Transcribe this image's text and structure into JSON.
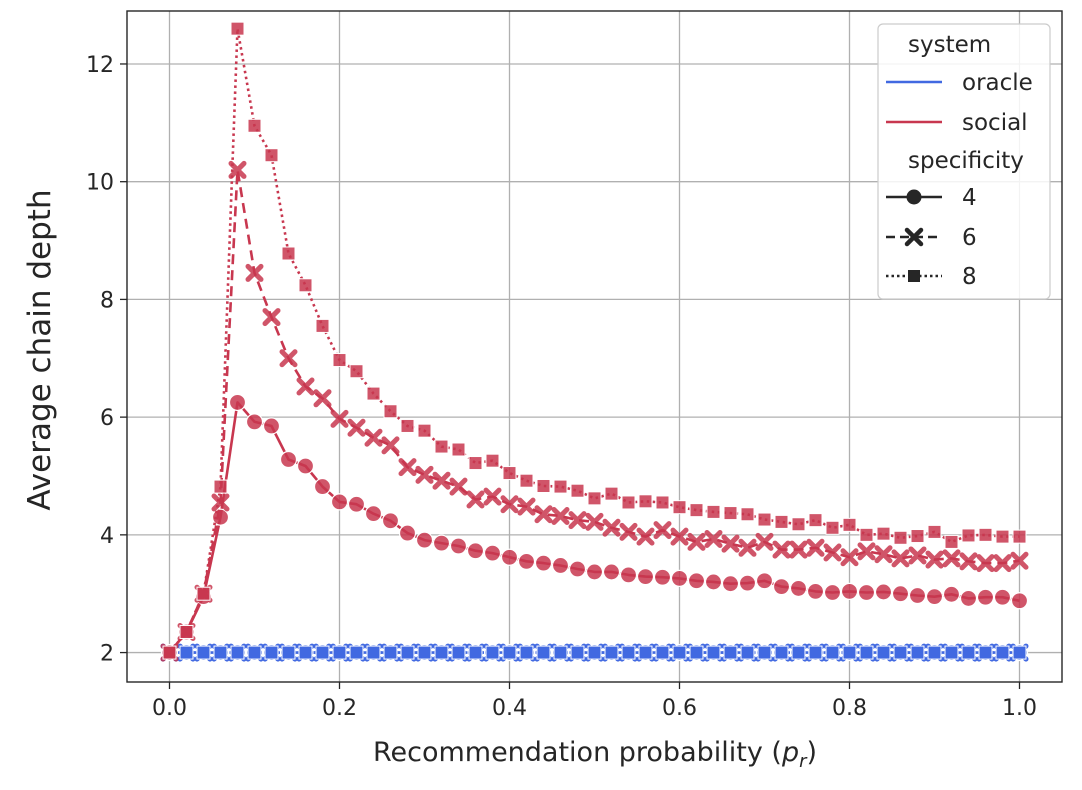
{
  "chart_data": {
    "type": "line",
    "xlabel": "Recommendation probability (",
    "xlabel_math": "p",
    "xlabel_sub": "r",
    "xlabel_close": ")",
    "ylabel": "Average chain depth",
    "xlim": [
      -0.05,
      1.05
    ],
    "ylim": [
      1.5,
      12.9
    ],
    "grid": true,
    "x_ticks": [
      0.0,
      0.2,
      0.4,
      0.6,
      0.8,
      1.0
    ],
    "x_tick_labels": [
      "0.0",
      "0.2",
      "0.4",
      "0.6",
      "0.8",
      "1.0"
    ],
    "y_ticks": [
      2,
      4,
      6,
      8,
      10,
      12
    ],
    "y_tick_labels": [
      "2",
      "4",
      "6",
      "8",
      "10",
      "12"
    ],
    "x": [
      0.0,
      0.02,
      0.04,
      0.06,
      0.08,
      0.1,
      0.12,
      0.14,
      0.16,
      0.18,
      0.2,
      0.22,
      0.24,
      0.26,
      0.28,
      0.3,
      0.32,
      0.34,
      0.36,
      0.38,
      0.4,
      0.42,
      0.44,
      0.46,
      0.48,
      0.5,
      0.52,
      0.54,
      0.56,
      0.58,
      0.6,
      0.62,
      0.64,
      0.66,
      0.68,
      0.7,
      0.72,
      0.74,
      0.76,
      0.78,
      0.8,
      0.82,
      0.84,
      0.86,
      0.88,
      0.9,
      0.92,
      0.94,
      0.96,
      0.98,
      1.0
    ],
    "series": [
      {
        "name": "oracle, specificity 4",
        "system": "oracle",
        "specificity": "4",
        "color": "#4169e1",
        "values": [
          2,
          2,
          2,
          2,
          2,
          2,
          2,
          2,
          2,
          2,
          2,
          2,
          2,
          2,
          2,
          2,
          2,
          2,
          2,
          2,
          2,
          2,
          2,
          2,
          2,
          2,
          2,
          2,
          2,
          2,
          2,
          2,
          2,
          2,
          2,
          2,
          2,
          2,
          2,
          2,
          2,
          2,
          2,
          2,
          2,
          2,
          2,
          2,
          2,
          2,
          2
        ]
      },
      {
        "name": "oracle, specificity 6",
        "system": "oracle",
        "specificity": "6",
        "color": "#4169e1",
        "values": [
          2,
          2,
          2,
          2,
          2,
          2,
          2,
          2,
          2,
          2,
          2,
          2,
          2,
          2,
          2,
          2,
          2,
          2,
          2,
          2,
          2,
          2,
          2,
          2,
          2,
          2,
          2,
          2,
          2,
          2,
          2,
          2,
          2,
          2,
          2,
          2,
          2,
          2,
          2,
          2,
          2,
          2,
          2,
          2,
          2,
          2,
          2,
          2,
          2,
          2,
          2
        ]
      },
      {
        "name": "oracle, specificity 8",
        "system": "oracle",
        "specificity": "8",
        "color": "#4169e1",
        "values": [
          2,
          2,
          2,
          2,
          2,
          2,
          2,
          2,
          2,
          2,
          2,
          2,
          2,
          2,
          2,
          2,
          2,
          2,
          2,
          2,
          2,
          2,
          2,
          2,
          2,
          2,
          2,
          2,
          2,
          2,
          2,
          2,
          2,
          2,
          2,
          2,
          2,
          2,
          2,
          2,
          2,
          2,
          2,
          2,
          2,
          2,
          2,
          2,
          2,
          2,
          2
        ]
      },
      {
        "name": "social, specificity 4",
        "system": "social",
        "specificity": "4",
        "color": "#c8374f",
        "values": [
          2.0,
          2.35,
          2.95,
          4.3,
          6.25,
          5.92,
          5.85,
          5.28,
          5.17,
          4.82,
          4.56,
          4.52,
          4.36,
          4.24,
          4.03,
          3.91,
          3.86,
          3.81,
          3.73,
          3.69,
          3.62,
          3.55,
          3.52,
          3.48,
          3.42,
          3.37,
          3.37,
          3.32,
          3.29,
          3.28,
          3.26,
          3.22,
          3.2,
          3.17,
          3.18,
          3.22,
          3.12,
          3.09,
          3.04,
          3.02,
          3.04,
          3.02,
          3.03,
          3.0,
          2.97,
          2.95,
          2.99,
          2.92,
          2.94,
          2.94,
          2.88
        ]
      },
      {
        "name": "social, specificity 6",
        "system": "social",
        "specificity": "6",
        "color": "#c8374f",
        "values": [
          2.0,
          2.35,
          3.0,
          4.55,
          10.2,
          8.45,
          7.7,
          7.0,
          6.52,
          6.32,
          5.97,
          5.82,
          5.65,
          5.52,
          5.15,
          5.02,
          4.92,
          4.82,
          4.6,
          4.65,
          4.52,
          4.48,
          4.35,
          4.32,
          4.25,
          4.22,
          4.12,
          4.05,
          3.97,
          4.08,
          3.97,
          3.88,
          3.93,
          3.85,
          3.78,
          3.88,
          3.75,
          3.75,
          3.78,
          3.7,
          3.62,
          3.72,
          3.67,
          3.6,
          3.65,
          3.58,
          3.6,
          3.55,
          3.52,
          3.52,
          3.56
        ]
      },
      {
        "name": "social, specificity 8",
        "system": "social",
        "specificity": "8",
        "color": "#c8374f",
        "values": [
          2.0,
          2.35,
          3.0,
          4.82,
          12.6,
          10.95,
          10.45,
          8.78,
          8.24,
          7.55,
          6.97,
          6.78,
          6.4,
          6.1,
          5.85,
          5.77,
          5.5,
          5.45,
          5.22,
          5.26,
          5.05,
          4.92,
          4.83,
          4.82,
          4.75,
          4.62,
          4.7,
          4.55,
          4.57,
          4.55,
          4.47,
          4.42,
          4.39,
          4.37,
          4.35,
          4.26,
          4.22,
          4.18,
          4.25,
          4.12,
          4.17,
          4.0,
          4.02,
          3.95,
          3.98,
          4.05,
          3.88,
          3.99,
          4.0,
          3.97,
          3.97
        ]
      }
    ],
    "legend": {
      "position": "top-right",
      "group1_title": "system",
      "entries_system": [
        {
          "label": "oracle",
          "color": "#4169e1"
        },
        {
          "label": "social",
          "color": "#c8374f"
        }
      ],
      "group2_title": "specificity",
      "entries_specificity": [
        {
          "label": "4",
          "marker": "circle",
          "dash": "solid"
        },
        {
          "label": "6",
          "marker": "x",
          "dash": "dashed"
        },
        {
          "label": "8",
          "marker": "square",
          "dash": "dotted"
        }
      ]
    }
  }
}
